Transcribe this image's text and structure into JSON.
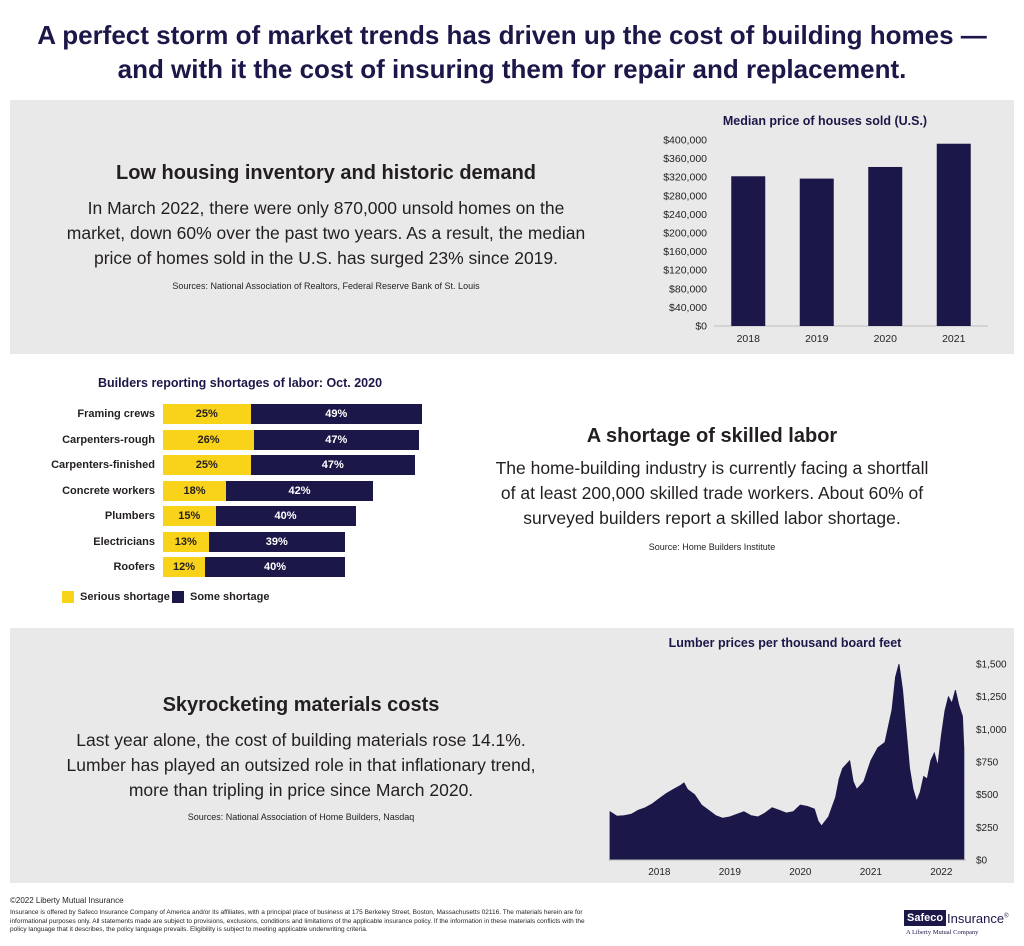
{
  "headline": {
    "line1": "A perfect storm of market trends has driven up the cost of building homes —",
    "line2": "and with it the cost of insuring them for repair and replacement."
  },
  "section1": {
    "title": "Low housing inventory and historic demand",
    "body_lines": [
      "In March 2022, there were only 870,000 unsold homes on the",
      "market, down 60% over the past two years. As a result, the median",
      "price of homes sold in the U.S. has surged 23% since 2019."
    ],
    "source": "Sources: National Association of Realtors, Federal Reserve Bank of St. Louis"
  },
  "section2": {
    "title": "A shortage of skilled labor",
    "body_lines": [
      "The home-building industry is currently facing a shortfall",
      "of at least 200,000 skilled trade workers. About 60% of",
      "surveyed builders report a skilled labor shortage."
    ],
    "source": "Source: Home Builders Institute"
  },
  "section3": {
    "title": "Skyrocketing materials costs",
    "body_lines": [
      "Last year alone, the cost of building materials rose 14.1%.",
      "Lumber has played an outsized role in that inflationary trend,",
      "more than tripling in price since March 2020."
    ],
    "source": "Sources: National Association of Home Builders, Nasdaq"
  },
  "colors": {
    "navy": "#1b1748",
    "yellow": "#f9d21a",
    "panel": "#e9e9e9"
  },
  "chart_data": [
    {
      "type": "bar",
      "title": "Median price of houses sold (U.S.)",
      "categories": [
        "2018",
        "2019",
        "2020",
        "2021"
      ],
      "values": [
        322000,
        317000,
        342000,
        392000
      ],
      "ylim": [
        0,
        400000
      ],
      "yticks": [
        0,
        40000,
        80000,
        120000,
        160000,
        200000,
        240000,
        280000,
        320000,
        360000,
        400000
      ],
      "ytick_labels": [
        "$0",
        "$40,000",
        "$80,000",
        "$120,000",
        "$160,000",
        "$200,000",
        "$240,000",
        "$280,000",
        "$320,000",
        "$360,000",
        "$400,000"
      ],
      "xlabel": "",
      "ylabel": ""
    },
    {
      "type": "bar",
      "orientation": "horizontal-stacked",
      "title": "Builders reporting shortages of labor: Oct. 2020",
      "categories": [
        "Framing crews",
        "Carpenters-rough",
        "Carpenters-finished",
        "Concrete workers",
        "Plumbers",
        "Electricians",
        "Roofers"
      ],
      "series": [
        {
          "name": "Serious shortage",
          "values": [
            25,
            26,
            25,
            18,
            15,
            13,
            12
          ],
          "labels": [
            "25%",
            "26%",
            "25%",
            "18%",
            "15%",
            "13%",
            "12%"
          ]
        },
        {
          "name": "Some shortage",
          "values": [
            49,
            47,
            47,
            42,
            40,
            39,
            40
          ],
          "labels": [
            "49%",
            "47%",
            "47%",
            "42%",
            "40%",
            "39%",
            "40%"
          ]
        }
      ],
      "legend": "bottom-left"
    },
    {
      "type": "area",
      "title": "Lumber prices per thousand board feet",
      "xlim": [
        2017.3,
        2022.35
      ],
      "ylim": [
        0,
        1500
      ],
      "xticks": [
        2018,
        2019,
        2020,
        2021,
        2022
      ],
      "xtick_labels": [
        "2018",
        "2019",
        "2020",
        "2021",
        "2022"
      ],
      "yticks": [
        0,
        250,
        500,
        750,
        1000,
        1250,
        1500
      ],
      "ytick_labels": [
        "$0",
        "$250",
        "$500",
        "$750",
        "$1,000",
        "$1,250",
        "$1,500"
      ],
      "y_axis_side": "right",
      "x": [
        2017.3,
        2017.4,
        2017.5,
        2017.6,
        2017.7,
        2017.8,
        2017.9,
        2018.0,
        2018.1,
        2018.2,
        2018.3,
        2018.35,
        2018.4,
        2018.5,
        2018.6,
        2018.7,
        2018.8,
        2018.9,
        2019.0,
        2019.1,
        2019.2,
        2019.3,
        2019.4,
        2019.5,
        2019.6,
        2019.7,
        2019.8,
        2019.9,
        2020.0,
        2020.1,
        2020.2,
        2020.25,
        2020.3,
        2020.4,
        2020.5,
        2020.55,
        2020.6,
        2020.7,
        2020.75,
        2020.8,
        2020.9,
        2021.0,
        2021.1,
        2021.2,
        2021.3,
        2021.35,
        2021.4,
        2021.45,
        2021.5,
        2021.55,
        2021.6,
        2021.65,
        2021.7,
        2021.75,
        2021.8,
        2021.85,
        2021.9,
        2021.95,
        2022.0,
        2022.05,
        2022.1,
        2022.15,
        2022.2,
        2022.25,
        2022.3,
        2022.32
      ],
      "values": [
        370,
        335,
        340,
        350,
        380,
        400,
        430,
        470,
        510,
        540,
        570,
        590,
        540,
        500,
        420,
        380,
        340,
        320,
        330,
        350,
        370,
        340,
        330,
        360,
        400,
        380,
        360,
        370,
        420,
        410,
        390,
        300,
        260,
        330,
        480,
        620,
        700,
        760,
        600,
        540,
        600,
        760,
        860,
        900,
        1150,
        1400,
        1500,
        1300,
        1000,
        700,
        540,
        450,
        520,
        640,
        620,
        760,
        820,
        720,
        950,
        1140,
        1250,
        1200,
        1300,
        1180,
        1100,
        850
      ]
    }
  ],
  "footer": {
    "copyright": "©2022 Liberty Mutual Insurance",
    "legal": "Insurance is offered by Safeco Insurance Company of America and/or its affiliates, with a principal place of business at 175 Berkeley Street, Boston, Massachusetts 02116. The materials herein are for informational purposes only. All statements made are subject to provisions, exclusions, conditions and limitations of the applicable insurance policy. If the information in these materials conflicts with the policy language that it describes, the policy language prevails. Eligibility is subject to meeting applicable underwriting criteria.",
    "logo_safeco": "Safeco",
    "logo_insurance": "Insurance",
    "logo_tm": "®",
    "logo_sub": "A Liberty Mutual Company"
  }
}
